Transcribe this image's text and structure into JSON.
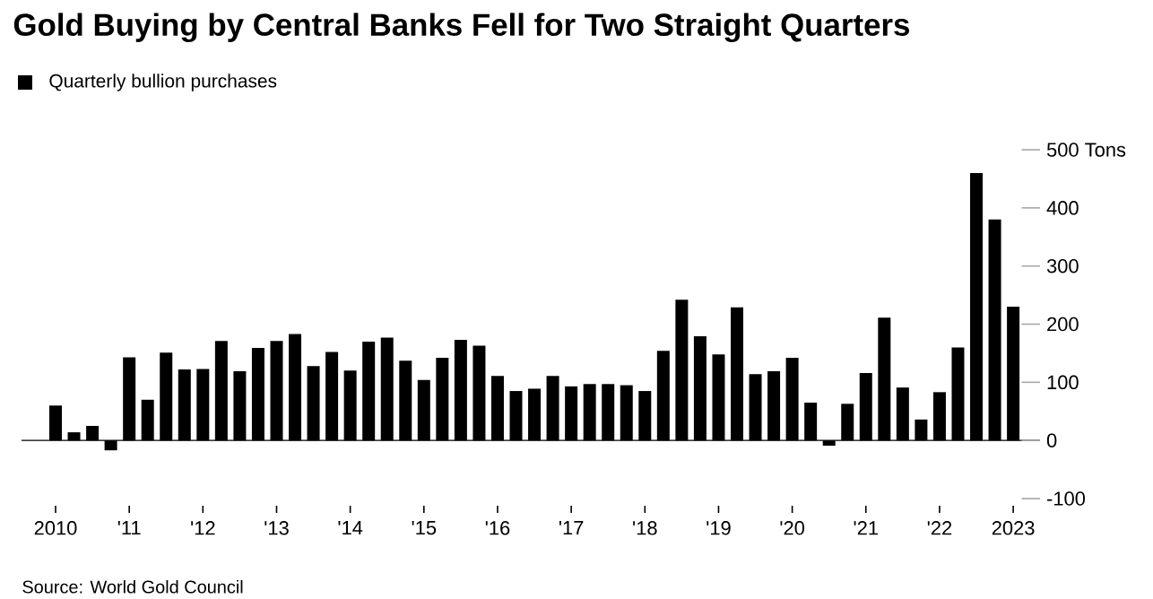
{
  "chart_data": {
    "type": "bar",
    "title": "Gold Buying by Central Banks Fell for Two Straight Quarters",
    "categories": [
      "2010",
      null,
      null,
      null,
      "'11",
      null,
      null,
      null,
      "'12",
      null,
      null,
      null,
      "'13",
      null,
      null,
      null,
      "'14",
      null,
      null,
      null,
      "'15",
      null,
      null,
      null,
      "'16",
      null,
      null,
      null,
      "'17",
      null,
      null,
      null,
      "'18",
      null,
      null,
      null,
      "'19",
      null,
      null,
      null,
      "'20",
      null,
      null,
      null,
      "'21",
      null,
      null,
      null,
      "'22",
      null,
      null,
      null,
      "2023"
    ],
    "series": [
      {
        "name": "Quarterly bullion purchases",
        "color": "#000000",
        "values": [
          60,
          14,
          25,
          -17,
          143,
          70,
          151,
          122,
          123,
          171,
          119,
          159,
          171,
          183,
          128,
          152,
          120,
          170,
          177,
          137,
          104,
          142,
          173,
          163,
          111,
          85,
          89,
          111,
          93,
          97,
          97,
          95,
          85,
          154,
          242,
          179,
          148,
          229,
          114,
          119,
          142,
          65,
          -9,
          63,
          116,
          211,
          91,
          36,
          83,
          160,
          460,
          380,
          230
        ]
      }
    ],
    "ylim": [
      -100,
      500
    ],
    "yticks": [
      -100,
      0,
      100,
      200,
      300,
      400,
      {
        "value": 500,
        "label": "500 Tons"
      }
    ],
    "legend": "top left",
    "annotations": [
      "Source: World Gold Council"
    ]
  }
}
